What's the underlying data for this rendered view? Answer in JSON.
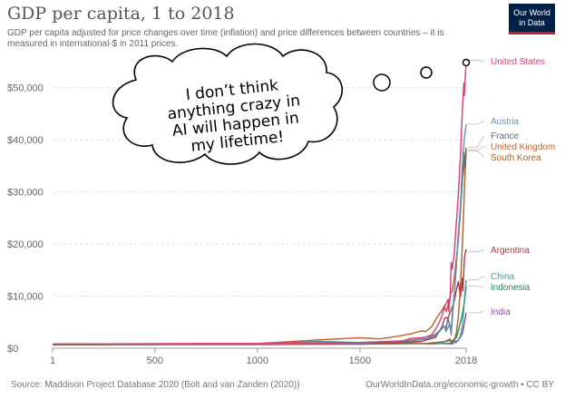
{
  "header": {
    "title": "GDP per capita, 1 to 2018",
    "subtitle": "GDP per capita adjusted for price changes over time (inflation) and price differences between countries – it is measured in international-$ in 2011 prices.",
    "logo_line1": "Our World",
    "logo_line2": "in Data"
  },
  "footer": {
    "source": "Source: Maddison Project Database 2020 (Bolt and van Zanden (2020))",
    "url": "OurWorldInData.org/economic-growth • CC BY"
  },
  "thought_bubble": {
    "lines": [
      "I don’t think",
      "anything crazy in",
      "AI will happen in",
      "my lifetime!"
    ]
  },
  "chart_data": {
    "type": "line",
    "title": "GDP per capita, 1 to 2018",
    "xlim": [
      1,
      2018
    ],
    "ylim": [
      0,
      55000
    ],
    "x_ticks": [
      1,
      500,
      1000,
      1500,
      2018
    ],
    "x_tick_labels": [
      "1",
      "500",
      "1000",
      "1500",
      "2018"
    ],
    "y_ticks": [
      0,
      10000,
      20000,
      30000,
      40000,
      50000
    ],
    "y_tick_labels": [
      "$0",
      "$10,000",
      "$20,000",
      "$30,000",
      "$40,000",
      "$50,000"
    ],
    "grid": "horizontal dashed",
    "legend_placement": "right",
    "series": [
      {
        "name": "United States",
        "color": "#d73c7a",
        "x": [
          1,
          1000,
          1300,
          1500,
          1650,
          1700,
          1750,
          1800,
          1820,
          1850,
          1870,
          1890,
          1900,
          1913,
          1920,
          1930,
          1933,
          1940,
          1945,
          1950,
          1960,
          1970,
          1980,
          1990,
          2000,
          2007,
          2009,
          2018
        ],
        "y": [
          800,
          900,
          1000,
          1100,
          1200,
          1300,
          1900,
          2000,
          2100,
          2600,
          3700,
          5200,
          6200,
          8100,
          8500,
          9400,
          7000,
          10000,
          16500,
          15200,
          18100,
          23900,
          29600,
          36900,
          45900,
          50900,
          48500,
          55300
        ]
      },
      {
        "name": "Austria",
        "color": "#6d8fb4",
        "x": [
          1,
          1000,
          1500,
          1700,
          1820,
          1870,
          1913,
          1920,
          1938,
          1945,
          1950,
          1960,
          1970,
          1980,
          1990,
          2000,
          2010,
          2018
        ],
        "y": [
          800,
          800,
          1000,
          1300,
          1700,
          2400,
          4300,
          3200,
          4600,
          2500,
          5200,
          10100,
          15500,
          22000,
          27500,
          35500,
          40500,
          43000
        ]
      },
      {
        "name": "France",
        "color": "#5f6b7a",
        "x": [
          1,
          1000,
          1500,
          1700,
          1820,
          1870,
          1913,
          1918,
          1929,
          1944,
          1950,
          1960,
          1970,
          1980,
          1990,
          2000,
          2010,
          2018
        ],
        "y": [
          800,
          800,
          1100,
          1400,
          1800,
          2700,
          4300,
          3300,
          5900,
          3100,
          6200,
          10300,
          15800,
          21900,
          26500,
          32400,
          35500,
          38500
        ]
      },
      {
        "name": "United Kingdom",
        "color": "#c2602a",
        "x": [
          1,
          1000,
          1300,
          1500,
          1600,
          1700,
          1750,
          1800,
          1820,
          1850,
          1870,
          1900,
          1913,
          1920,
          1930,
          1945,
          1950,
          1960,
          1970,
          1980,
          1990,
          2000,
          2007,
          2009,
          2018
        ],
        "y": [
          800,
          900,
          1600,
          2000,
          1800,
          2400,
          2800,
          3300,
          3200,
          4100,
          5500,
          7300,
          8200,
          7000,
          8200,
          10800,
          10900,
          13500,
          17000,
          20700,
          26200,
          32500,
          37500,
          35500,
          38000
        ]
      },
      {
        "name": "South Korea",
        "color": "#a4622a",
        "x": [
          1,
          1500,
          1820,
          1910,
          1940,
          1945,
          1953,
          1960,
          1970,
          1980,
          1990,
          2000,
          2010,
          2018
        ],
        "y": [
          700,
          800,
          900,
          1200,
          1800,
          1100,
          1200,
          1500,
          2900,
          6100,
          12000,
          20000,
          31000,
          37900
        ]
      },
      {
        "name": "Argentina",
        "color": "#a93a44",
        "x": [
          1,
          1500,
          1800,
          1870,
          1900,
          1913,
          1930,
          1950,
          1960,
          1970,
          1980,
          1990,
          2000,
          2002,
          2010,
          2017,
          2018
        ],
        "y": [
          700,
          800,
          1300,
          2100,
          4100,
          5800,
          5900,
          7800,
          9000,
          11100,
          12800,
          9900,
          13500,
          11000,
          17500,
          18900,
          18500
        ]
      },
      {
        "name": "China",
        "color": "#4a9a94",
        "x": [
          1,
          1000,
          1300,
          1500,
          1700,
          1800,
          1850,
          1900,
          1950,
          1960,
          1970,
          1980,
          1990,
          2000,
          2010,
          2018
        ],
        "y": [
          700,
          900,
          1300,
          1100,
          1100,
          900,
          800,
          900,
          800,
          1100,
          1100,
          1600,
          2400,
          4200,
          9500,
          13100
        ]
      },
      {
        "name": "Indonesia",
        "color": "#1a8a4e",
        "x": [
          1,
          1500,
          1820,
          1900,
          1940,
          1950,
          1960,
          1970,
          1980,
          1990,
          2000,
          2010,
          2018
        ],
        "y": [
          700,
          800,
          900,
          1200,
          1500,
          1300,
          1800,
          2000,
          3400,
          5000,
          6600,
          9000,
          11900
        ]
      },
      {
        "name": "India",
        "color": "#8a4ea0",
        "x": [
          1,
          1000,
          1500,
          1700,
          1820,
          1900,
          1950,
          1960,
          1970,
          1980,
          1990,
          2000,
          2010,
          2018
        ],
        "y": [
          700,
          700,
          800,
          900,
          900,
          900,
          1000,
          1200,
          1400,
          1500,
          2100,
          2800,
          4900,
          6800
        ]
      }
    ]
  }
}
